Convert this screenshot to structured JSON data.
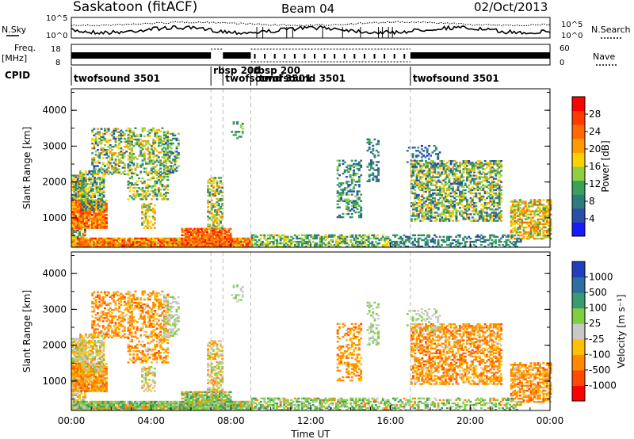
{
  "header": {
    "station": "Saskatoon (fitACF)",
    "beam": "Beam 04",
    "date": "02/Oct/2013"
  },
  "strips": {
    "nsky_label": "N.Sky",
    "nsearch_label": "N.Search",
    "freq_label_1": "Freq.",
    "freq_label_2": "[MHz]",
    "nave_label": "Nave",
    "cpid_label": "CPID",
    "noise_ticks_left": [
      "10^5",
      "10^0"
    ],
    "noise_ticks_right": [
      "10^5",
      "10^0"
    ],
    "freq_ticks_left": [
      "18",
      "8"
    ],
    "nave_ticks_right": [
      "60",
      "0"
    ]
  },
  "cpid_events": [
    {
      "name": "twofsound 3501",
      "start": 0.0
    },
    {
      "name": "rbsp 200",
      "start": 7.0
    },
    {
      "name": "twofsound 3501",
      "start": 7.6
    },
    {
      "name": "rbsp 200",
      "start": 9.0
    },
    {
      "name": "twofsound 3501",
      "start": 9.3
    },
    {
      "name": "twofsound 3501",
      "start": 17.0
    }
  ],
  "chart_data": [
    {
      "type": "heatmap",
      "title": "",
      "xlabel": "",
      "ylabel": "Slant Range [km]",
      "xlim": [
        0,
        24
      ],
      "ylim": [
        180,
        4600
      ],
      "yticks": [
        "1000",
        "2000",
        "3000",
        "4000"
      ],
      "colorbar": {
        "label": "Power [dB]",
        "ticks": [
          "4",
          "8",
          "12",
          "16",
          "20",
          "24",
          "28"
        ],
        "colors": [
          "#1a1aff",
          "#2a4fa8",
          "#2e7d7d",
          "#3aa05a",
          "#8fd040",
          "#ffd000",
          "#ff9a00",
          "#ff6a00",
          "#ff3b00",
          "#ff0000"
        ]
      }
    },
    {
      "type": "heatmap",
      "title": "",
      "xlabel": "Time UT",
      "ylabel": "Slant Range [km]",
      "xlim": [
        0,
        24
      ],
      "ylim": [
        180,
        4600
      ],
      "yticks": [
        "1000",
        "2000",
        "3000",
        "4000"
      ],
      "xticks": [
        "00:00",
        "04:00",
        "08:00",
        "12:00",
        "16:00",
        "20:00",
        "00:00"
      ],
      "colorbar": {
        "label": "Velocity [m s⁻¹]",
        "ticks": [
          "1000",
          "500",
          "100",
          "25",
          "-25",
          "-100",
          "-500",
          "-1000"
        ],
        "colors": [
          "#1f3fbf",
          "#2d6fa0",
          "#3a9a70",
          "#7fd040",
          "#c8c8c8",
          "#ffc000",
          "#ff8a00",
          "#ff4a00",
          "#ff0000"
        ]
      }
    }
  ]
}
